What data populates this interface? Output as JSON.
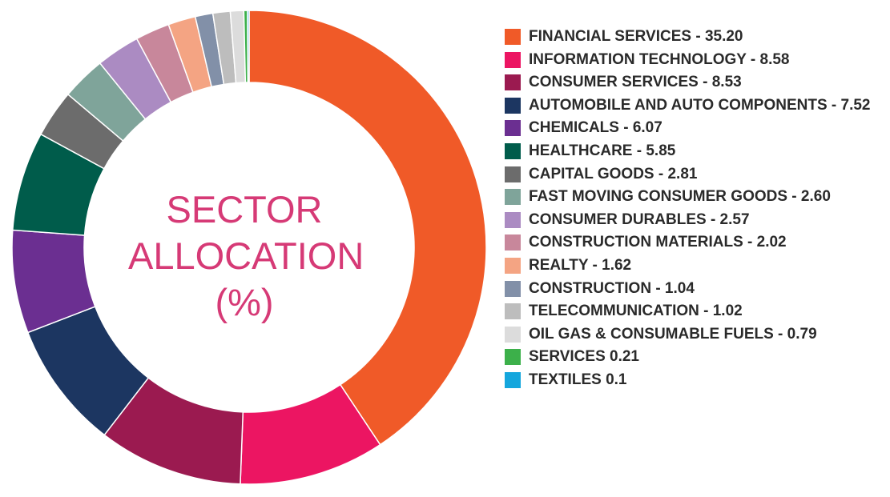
{
  "chart_data": {
    "type": "pie",
    "title": "SECTOR ALLOCATION (%)",
    "title_lines": [
      "SECTOR",
      "ALLOCATION",
      "(%)"
    ],
    "donut": true,
    "legend_placement": "right",
    "slices": [
      {
        "label": "FINANCIAL SERVICES - 35.20",
        "value": 35.2,
        "color": "#f05a28"
      },
      {
        "label": "INFORMATION TECHNOLOGY - 8.58",
        "value": 8.58,
        "color": "#ec1562"
      },
      {
        "label": "CONSUMER SERVICES - 8.53",
        "value": 8.53,
        "color": "#9b1a50"
      },
      {
        "label": "AUTOMOBILE AND AUTO COMPONENTS - 7.52",
        "value": 7.52,
        "color": "#1c3661"
      },
      {
        "label": "CHEMICALS - 6.07",
        "value": 6.07,
        "color": "#6b2f91"
      },
      {
        "label": "HEALTHCARE - 5.85",
        "value": 5.85,
        "color": "#005c4b"
      },
      {
        "label": "CAPITAL GOODS - 2.81",
        "value": 2.81,
        "color": "#6c6c6c"
      },
      {
        "label": "FAST MOVING CONSUMER GOODS - 2.60",
        "value": 2.6,
        "color": "#7fa49a"
      },
      {
        "label": "CONSUMER DURABLES - 2.57",
        "value": 2.57,
        "color": "#ab8bc2"
      },
      {
        "label": "CONSTRUCTION MATERIALS - 2.02",
        "value": 2.02,
        "color": "#c8879b"
      },
      {
        "label": "REALTY - 1.62",
        "value": 1.62,
        "color": "#f4a483"
      },
      {
        "label": "CONSTRUCTION - 1.04",
        "value": 1.04,
        "color": "#8290a8"
      },
      {
        "label": "TELECOMMUNICATION - 1.02",
        "value": 1.02,
        "color": "#bdbdbd"
      },
      {
        "label": "OIL GAS & CONSUMABLE FUELS  - 0.79",
        "value": 0.79,
        "color": "#dcdcdc"
      },
      {
        "label": "SERVICES  0.21",
        "value": 0.21,
        "color": "#3cb04a"
      },
      {
        "label": "TEXTILES  0.1",
        "value": 0.1,
        "color": "#14a6dd"
      }
    ]
  }
}
